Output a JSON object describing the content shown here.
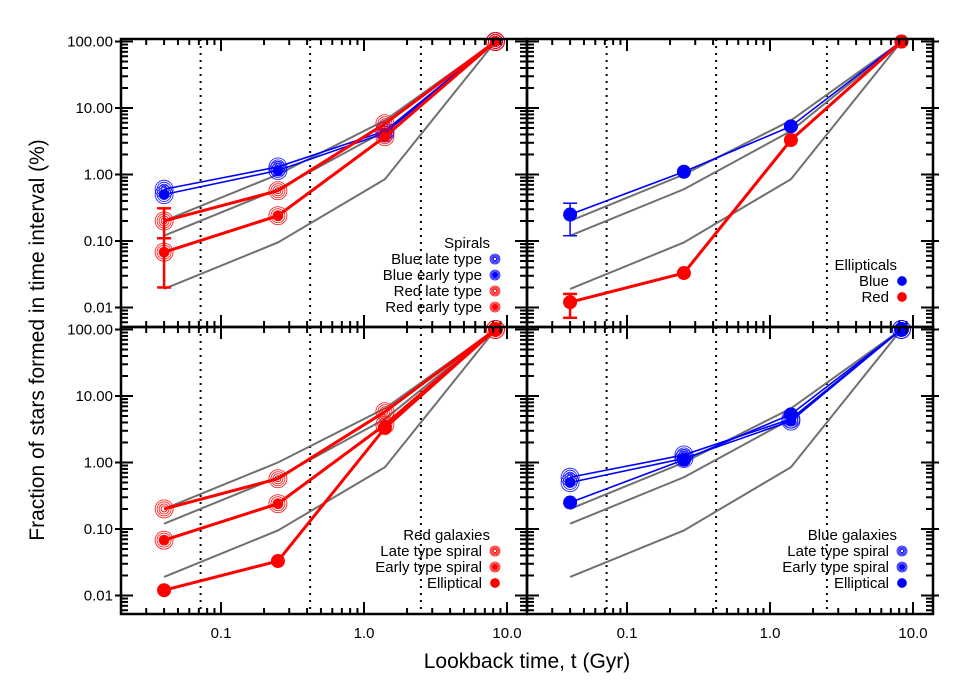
{
  "chart_data": [
    {
      "type": "line",
      "panel": "top-left",
      "title": "Spirals",
      "xlabel": "Lookback time, t (Gyr)",
      "ylabel": "Fraction of stars formed in time interval (%)",
      "xscale": "log",
      "yscale": "log",
      "xlim": [
        0.022,
        13
      ],
      "ylim": [
        0.0055,
        110
      ],
      "x": [
        0.04,
        0.25,
        1.4,
        8.3
      ],
      "vlines": [
        0.072,
        0.42,
        2.5
      ],
      "reference_lines": [
        {
          "name": "gray-upper",
          "values": [
            0.2,
            1.0,
            6.5,
            100
          ]
        },
        {
          "name": "gray-middle",
          "values": [
            0.12,
            0.6,
            4.5,
            100
          ]
        },
        {
          "name": "gray-lower",
          "values": [
            0.019,
            0.095,
            0.85,
            100
          ]
        }
      ],
      "series": [
        {
          "name": "Blue late type",
          "color": "#0000ff",
          "marker": "rings",
          "values": [
            0.6,
            1.3,
            4.5,
            100
          ]
        },
        {
          "name": "Blue early type",
          "color": "#0000ff",
          "marker": "rings-filled",
          "values": [
            0.5,
            1.15,
            4.2,
            100
          ]
        },
        {
          "name": "Red late type",
          "color": "#ff0000",
          "marker": "rings",
          "values": [
            0.2,
            0.57,
            5.8,
            100
          ],
          "error_bar_index0": [
            0.11,
            0.31
          ]
        },
        {
          "name": "Red early type",
          "color": "#ff0000",
          "marker": "rings-filled",
          "values": [
            0.068,
            0.24,
            3.7,
            100
          ],
          "error_bar_index0": [
            0.02,
            0.11
          ]
        }
      ]
    },
    {
      "type": "line",
      "panel": "top-right",
      "title": "Ellipticals",
      "xscale": "log",
      "yscale": "log",
      "x": [
        0.04,
        0.25,
        1.4,
        8.3
      ],
      "series": [
        {
          "name": "Blue",
          "color": "#0000ff",
          "marker": "filled",
          "values": [
            0.25,
            1.1,
            5.3,
            100
          ],
          "error_bar_index0": [
            0.12,
            0.37
          ]
        },
        {
          "name": "Red",
          "color": "#ff0000",
          "marker": "filled",
          "values": [
            0.012,
            0.033,
            3.3,
            100
          ],
          "error_bar_index0": [
            0.007,
            0.016
          ]
        }
      ]
    },
    {
      "type": "line",
      "panel": "bottom-left",
      "title": "Red galaxies",
      "xscale": "log",
      "yscale": "log",
      "x": [
        0.04,
        0.25,
        1.4,
        8.3
      ],
      "series": [
        {
          "name": "Late type spiral",
          "color": "#ff0000",
          "marker": "rings",
          "values": [
            0.2,
            0.57,
            5.8,
            100
          ]
        },
        {
          "name": "Early type spiral",
          "color": "#ff0000",
          "marker": "rings-filled",
          "values": [
            0.068,
            0.24,
            3.7,
            100
          ]
        },
        {
          "name": "Elliptical",
          "color": "#ff0000",
          "marker": "filled",
          "values": [
            0.012,
            0.033,
            3.3,
            100
          ]
        }
      ]
    },
    {
      "type": "line",
      "panel": "bottom-right",
      "title": "Blue galaxies",
      "xscale": "log",
      "yscale": "log",
      "x": [
        0.04,
        0.25,
        1.4,
        8.3
      ],
      "series": [
        {
          "name": "Late type spiral",
          "color": "#0000ff",
          "marker": "rings",
          "values": [
            0.6,
            1.3,
            4.5,
            100
          ]
        },
        {
          "name": "Early type spiral",
          "color": "#0000ff",
          "marker": "rings-filled",
          "values": [
            0.5,
            1.15,
            4.2,
            100
          ]
        },
        {
          "name": "Elliptical",
          "color": "#0000ff",
          "marker": "filled",
          "values": [
            0.25,
            1.1,
            5.3,
            100
          ]
        }
      ]
    }
  ],
  "axes": {
    "x_title": "Lookback time, t (Gyr)",
    "y_title": "Fraction of stars formed in time interval (%)",
    "x_ticks": [
      "0.1",
      "1.0",
      "10.0"
    ],
    "y_ticks": [
      "100.00",
      "10.00",
      "1.00",
      "0.10",
      "0.01"
    ]
  },
  "legends": {
    "top_left": {
      "title": "Spirals",
      "items": [
        "Blue late type",
        "Blue early type",
        "Red late type",
        "Red early type"
      ]
    },
    "top_right": {
      "title": "Ellipticals",
      "items": [
        "Blue",
        "Red"
      ]
    },
    "bottom_left": {
      "title": "Red galaxies",
      "items": [
        "Late type spiral",
        "Early type spiral",
        "Elliptical"
      ]
    },
    "bottom_right": {
      "title": "Blue galaxies",
      "items": [
        "Late type spiral",
        "Early type spiral",
        "Elliptical"
      ]
    }
  },
  "colors": {
    "blue": "#0000ff",
    "red": "#ff0000",
    "gray": "#707070",
    "axis": "#000000"
  }
}
